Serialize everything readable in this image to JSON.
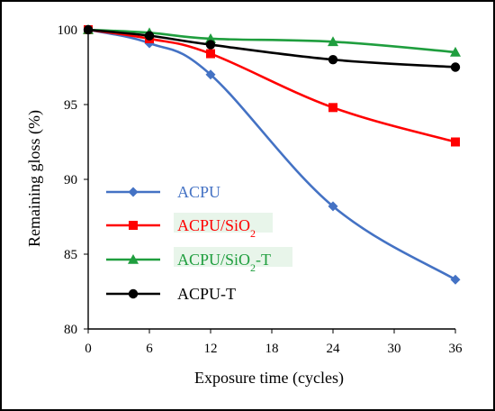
{
  "chart_data": {
    "type": "line",
    "xlabel": "Exposure time (cycles)",
    "ylabel": "Remaining gloss (%)",
    "xlim": [
      0,
      36
    ],
    "ylim": [
      80,
      100
    ],
    "xticks": [
      0,
      6,
      12,
      18,
      24,
      30,
      36
    ],
    "yticks": [
      80,
      85,
      90,
      95,
      100
    ],
    "grid": false,
    "legend_position": "left",
    "series": [
      {
        "name": "ACPU",
        "legend_parts": [
          [
            "ACPU",
            ""
          ]
        ],
        "legend_highlight": false,
        "color": "#4472C4",
        "marker": "diamond",
        "x": [
          0,
          6,
          12,
          24,
          36
        ],
        "y": [
          100.0,
          99.1,
          97.0,
          88.2,
          83.3
        ]
      },
      {
        "name": "ACPU/SiO2",
        "legend_parts": [
          [
            "ACPU/SiO",
            ""
          ],
          [
            "2",
            "sub"
          ]
        ],
        "legend_highlight": true,
        "color": "#FF0000",
        "marker": "square",
        "x": [
          0,
          6,
          12,
          24,
          36
        ],
        "y": [
          100.0,
          99.4,
          98.4,
          94.8,
          92.5
        ]
      },
      {
        "name": "ACPU/SiO2-T",
        "legend_parts": [
          [
            "ACPU/SiO",
            ""
          ],
          [
            "2",
            "sub"
          ],
          [
            "-T",
            ""
          ]
        ],
        "legend_highlight": true,
        "color": "#1F9E3E",
        "marker": "triangle",
        "x": [
          0,
          6,
          12,
          24,
          36
        ],
        "y": [
          100.0,
          99.8,
          99.4,
          99.2,
          98.5
        ]
      },
      {
        "name": "ACPU-T",
        "legend_parts": [
          [
            "ACPU-T",
            ""
          ]
        ],
        "legend_highlight": false,
        "color": "#000000",
        "marker": "circle",
        "x": [
          0,
          6,
          12,
          24,
          36
        ],
        "y": [
          100.0,
          99.6,
          99.0,
          98.0,
          97.5
        ]
      }
    ]
  }
}
